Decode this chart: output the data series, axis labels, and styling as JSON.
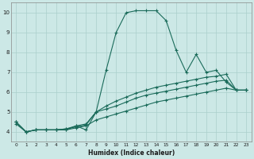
{
  "title": "",
  "xlabel": "Humidex (Indice chaleur)",
  "bg_color": "#cce8e6",
  "line_color": "#1a6b5a",
  "grid_color": "#aacfcc",
  "xlim": [
    -0.5,
    23.5
  ],
  "ylim": [
    3.5,
    10.5
  ],
  "xticks": [
    0,
    1,
    2,
    3,
    4,
    5,
    6,
    7,
    8,
    9,
    10,
    11,
    12,
    13,
    14,
    15,
    16,
    17,
    18,
    19,
    20,
    21,
    22,
    23
  ],
  "yticks": [
    4,
    5,
    6,
    7,
    8,
    9,
    10
  ],
  "line1_x": [
    0,
    1,
    2,
    3,
    4,
    5,
    6,
    7,
    8,
    9,
    10,
    11,
    12,
    13,
    14,
    15,
    16,
    17,
    18,
    19,
    20,
    21,
    22,
    23
  ],
  "line1_y": [
    4.5,
    4.0,
    4.1,
    4.1,
    4.1,
    4.1,
    4.3,
    4.1,
    5.0,
    7.1,
    9.0,
    10.0,
    10.1,
    10.1,
    10.1,
    9.6,
    8.1,
    7.0,
    7.9,
    7.0,
    7.1,
    6.5,
    6.1,
    6.1
  ],
  "line2_x": [
    0,
    1,
    2,
    3,
    4,
    5,
    6,
    7,
    8,
    9,
    10,
    11,
    12,
    13,
    14,
    15,
    16,
    17,
    18,
    19,
    20,
    21,
    22,
    23
  ],
  "line2_y": [
    4.5,
    4.0,
    4.1,
    4.1,
    4.1,
    4.15,
    4.3,
    4.4,
    5.0,
    5.3,
    5.55,
    5.75,
    5.95,
    6.1,
    6.25,
    6.35,
    6.45,
    6.55,
    6.65,
    6.75,
    6.8,
    6.9,
    6.1,
    6.1
  ],
  "line3_x": [
    0,
    1,
    2,
    3,
    4,
    5,
    6,
    7,
    8,
    9,
    10,
    11,
    12,
    13,
    14,
    15,
    16,
    17,
    18,
    19,
    20,
    21,
    22,
    23
  ],
  "line3_y": [
    4.5,
    4.0,
    4.1,
    4.1,
    4.1,
    4.15,
    4.25,
    4.35,
    5.0,
    5.15,
    5.3,
    5.5,
    5.7,
    5.85,
    5.95,
    6.05,
    6.15,
    6.25,
    6.35,
    6.45,
    6.55,
    6.6,
    6.1,
    6.1
  ],
  "line4_x": [
    0,
    1,
    2,
    3,
    4,
    5,
    6,
    7,
    8,
    9,
    10,
    11,
    12,
    13,
    14,
    15,
    16,
    17,
    18,
    19,
    20,
    21,
    22,
    23
  ],
  "line4_y": [
    4.4,
    4.0,
    4.1,
    4.1,
    4.1,
    4.1,
    4.2,
    4.3,
    4.6,
    4.75,
    4.9,
    5.05,
    5.2,
    5.35,
    5.5,
    5.6,
    5.7,
    5.8,
    5.9,
    6.0,
    6.1,
    6.2,
    6.1,
    6.1
  ]
}
